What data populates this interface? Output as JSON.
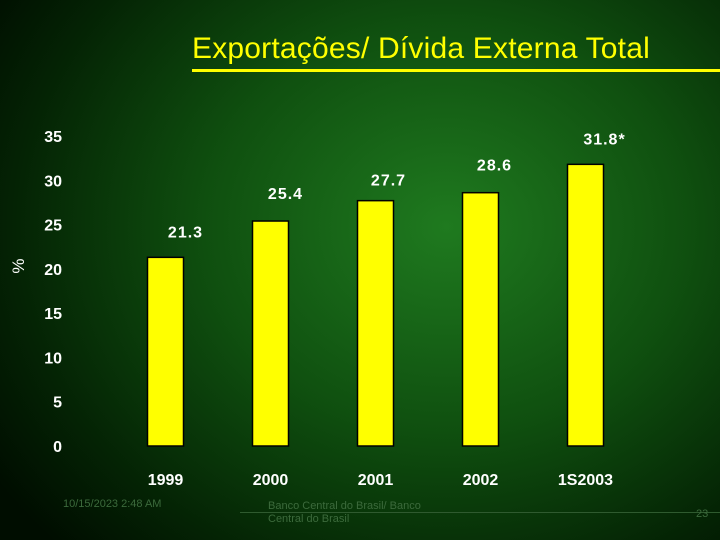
{
  "title": "Exportações/ Dívida Externa Total",
  "footer": {
    "date": "10/15/2023 2:48 AM",
    "org": "Banco Central do Brasil/ Banco Central do Brasil",
    "page": "23"
  },
  "colors": {
    "bar": "#ffff00",
    "title": "#ffff00",
    "text": "#ffffff"
  },
  "chart_data": {
    "type": "bar",
    "categories": [
      "1999",
      "2000",
      "2001",
      "2002",
      "1S2003"
    ],
    "values": [
      21.3,
      25.4,
      27.7,
      28.6,
      31.8
    ],
    "data_labels": [
      "21.3",
      "25.4",
      "27.7",
      "28.6",
      "31.8*"
    ],
    "yticks": [
      0,
      5,
      10,
      15,
      20,
      25,
      30,
      35
    ],
    "ylim": [
      0,
      35
    ],
    "ylabel": "%",
    "xlabel": "",
    "title": "Exportações/ Dívida Externa Total",
    "grid": false,
    "legend": "none"
  }
}
